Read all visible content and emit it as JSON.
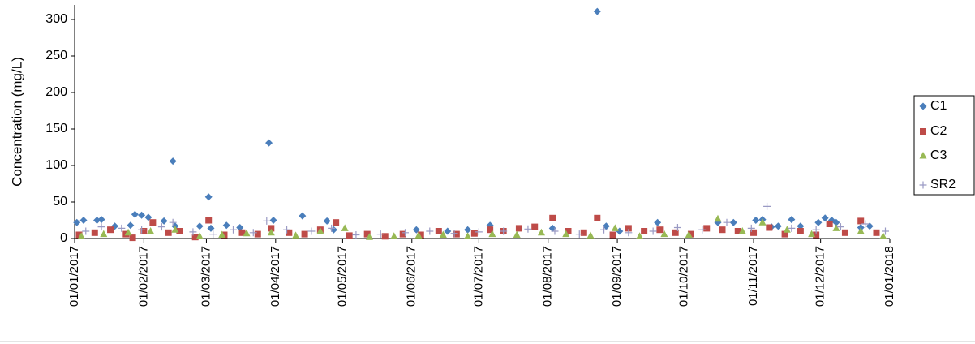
{
  "chart_data": {
    "type": "scatter",
    "y_label": "Concentration (mg/L)",
    "ylim": [
      0,
      320
    ],
    "yticks": [
      0,
      50,
      100,
      150,
      200,
      250,
      300
    ],
    "xlim": [
      "2017-01-01",
      "2018-01-01"
    ],
    "xticks": [
      {
        "value": "2017-01-01",
        "label": "01/01/2017"
      },
      {
        "value": "2017-02-01",
        "label": "01/02/2017"
      },
      {
        "value": "2017-03-01",
        "label": "01/03/2017"
      },
      {
        "value": "2017-04-01",
        "label": "01/04/2017"
      },
      {
        "value": "2017-05-01",
        "label": "01/05/2017"
      },
      {
        "value": "2017-06-01",
        "label": "01/06/2017"
      },
      {
        "value": "2017-07-01",
        "label": "01/07/2017"
      },
      {
        "value": "2017-08-01",
        "label": "01/08/2017"
      },
      {
        "value": "2017-09-01",
        "label": "01/09/2017"
      },
      {
        "value": "2017-10-01",
        "label": "01/10/2017"
      },
      {
        "value": "2017-11-01",
        "label": "01/11/2017"
      },
      {
        "value": "2017-12-01",
        "label": "01/12/2017"
      },
      {
        "value": "2018-01-01",
        "label": "01/01/2018"
      }
    ],
    "legend": "right",
    "series": [
      {
        "name": "C1",
        "color": "#4a7ebb",
        "marker": "diamond",
        "x": [
          "2017-01-02",
          "2017-01-05",
          "2017-01-11",
          "2017-01-13",
          "2017-01-19",
          "2017-01-26",
          "2017-01-28",
          "2017-01-31",
          "2017-02-03",
          "2017-02-10",
          "2017-02-14",
          "2017-02-15",
          "2017-02-26",
          "2017-03-02",
          "2017-03-03",
          "2017-03-10",
          "2017-03-16",
          "2017-03-29",
          "2017-03-31",
          "2017-04-13",
          "2017-04-24",
          "2017-04-27",
          "2017-06-03",
          "2017-06-17",
          "2017-06-26",
          "2017-07-06",
          "2017-08-03",
          "2017-08-23",
          "2017-08-27",
          "2017-09-02",
          "2017-09-19",
          "2017-10-16",
          "2017-10-23",
          "2017-11-02",
          "2017-11-05",
          "2017-11-09",
          "2017-11-12",
          "2017-11-18",
          "2017-11-22",
          "2017-11-30",
          "2017-12-03",
          "2017-12-06",
          "2017-12-08",
          "2017-12-19",
          "2017-12-23"
        ],
        "values": [
          22,
          25,
          25,
          26,
          17,
          18,
          33,
          32,
          29,
          24,
          106,
          17,
          17,
          57,
          14,
          18,
          15,
          131,
          25,
          31,
          24,
          12,
          12,
          10,
          12,
          18,
          14,
          311,
          17,
          10,
          22,
          22,
          22,
          25,
          26,
          16,
          17,
          26,
          17,
          22,
          28,
          25,
          22,
          15,
          17
        ]
      },
      {
        "name": "C2",
        "color": "#be4b48",
        "marker": "square",
        "x": [
          "2017-01-03",
          "2017-01-10",
          "2017-01-17",
          "2017-01-24",
          "2017-01-27",
          "2017-02-01",
          "2017-02-05",
          "2017-02-12",
          "2017-02-17",
          "2017-02-24",
          "2017-03-02",
          "2017-03-09",
          "2017-03-17",
          "2017-03-24",
          "2017-03-30",
          "2017-04-07",
          "2017-04-14",
          "2017-04-21",
          "2017-04-28",
          "2017-05-04",
          "2017-05-12",
          "2017-05-20",
          "2017-05-28",
          "2017-06-05",
          "2017-06-13",
          "2017-06-21",
          "2017-06-29",
          "2017-07-06",
          "2017-07-12",
          "2017-07-19",
          "2017-07-26",
          "2017-08-03",
          "2017-08-10",
          "2017-08-17",
          "2017-08-23",
          "2017-08-30",
          "2017-09-06",
          "2017-09-13",
          "2017-09-20",
          "2017-09-27",
          "2017-10-04",
          "2017-10-11",
          "2017-10-18",
          "2017-10-25",
          "2017-11-01",
          "2017-11-08",
          "2017-11-15",
          "2017-11-22",
          "2017-11-29",
          "2017-12-05",
          "2017-12-12",
          "2017-12-19",
          "2017-12-26"
        ],
        "values": [
          5,
          8,
          12,
          6,
          1,
          10,
          22,
          8,
          10,
          2,
          25,
          5,
          8,
          6,
          14,
          8,
          6,
          12,
          22,
          4,
          6,
          3,
          6,
          5,
          10,
          6,
          7,
          12,
          10,
          14,
          16,
          28,
          10,
          8,
          28,
          5,
          14,
          10,
          12,
          8,
          6,
          14,
          12,
          10,
          8,
          15,
          6,
          10,
          5,
          20,
          8,
          24,
          8
        ]
      },
      {
        "name": "C3",
        "color": "#98b954",
        "marker": "triangle",
        "x": [
          "2017-01-04",
          "2017-01-14",
          "2017-01-25",
          "2017-02-04",
          "2017-02-15",
          "2017-02-26",
          "2017-03-08",
          "2017-03-19",
          "2017-03-30",
          "2017-04-10",
          "2017-04-21",
          "2017-05-02",
          "2017-05-13",
          "2017-05-24",
          "2017-06-04",
          "2017-06-15",
          "2017-06-26",
          "2017-07-07",
          "2017-07-18",
          "2017-07-29",
          "2017-08-09",
          "2017-08-20",
          "2017-08-31",
          "2017-09-11",
          "2017-09-22",
          "2017-10-03",
          "2017-10-16",
          "2017-10-27",
          "2017-11-05",
          "2017-11-16",
          "2017-11-27",
          "2017-12-08",
          "2017-12-19",
          "2017-12-29"
        ],
        "values": [
          3,
          6,
          8,
          10,
          12,
          3,
          5,
          7,
          8,
          4,
          10,
          14,
          2,
          3,
          4,
          5,
          3,
          6,
          5,
          8,
          6,
          4,
          14,
          3,
          6,
          5,
          27,
          10,
          22,
          12,
          6,
          14,
          10,
          3
        ]
      },
      {
        "name": "SR2",
        "color": "#9a9ac4",
        "marker": "plus",
        "x": [
          "2017-01-06",
          "2017-01-13",
          "2017-01-22",
          "2017-01-31",
          "2017-02-09",
          "2017-02-14",
          "2017-02-23",
          "2017-03-04",
          "2017-03-13",
          "2017-03-22",
          "2017-03-28",
          "2017-04-06",
          "2017-04-17",
          "2017-04-26",
          "2017-05-07",
          "2017-05-18",
          "2017-05-29",
          "2017-06-09",
          "2017-06-20",
          "2017-07-01",
          "2017-07-12",
          "2017-07-23",
          "2017-08-04",
          "2017-08-15",
          "2017-08-26",
          "2017-09-06",
          "2017-09-17",
          "2017-09-28",
          "2017-10-09",
          "2017-10-20",
          "2017-10-31",
          "2017-11-07",
          "2017-11-18",
          "2017-11-29",
          "2017-12-10",
          "2017-12-21",
          "2017-12-30"
        ],
        "values": [
          10,
          16,
          14,
          12,
          16,
          22,
          9,
          6,
          12,
          8,
          24,
          12,
          10,
          14,
          5,
          6,
          8,
          10,
          7,
          9,
          10,
          13,
          10,
          6,
          12,
          8,
          10,
          15,
          12,
          22,
          14,
          44,
          14,
          12,
          16,
          20,
          10
        ]
      }
    ]
  }
}
